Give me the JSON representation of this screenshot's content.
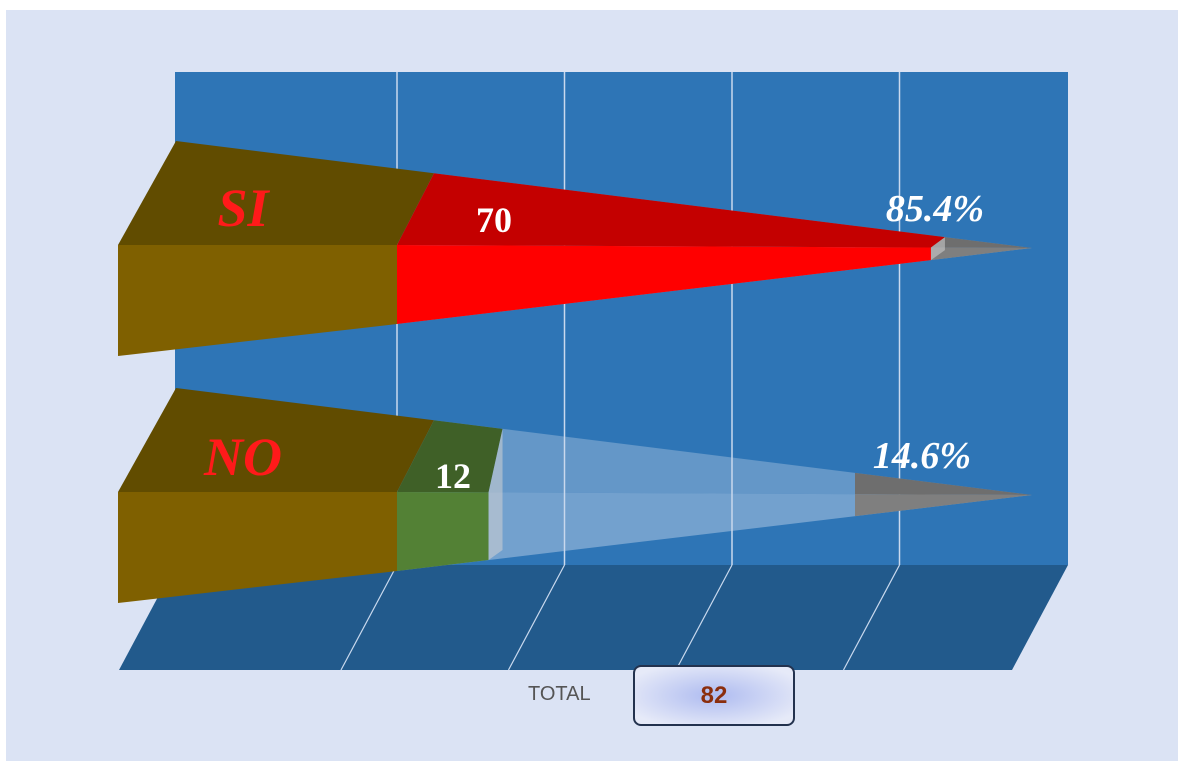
{
  "chart_data": {
    "type": "bar",
    "orientation": "horizontal",
    "style": "3d-cone",
    "categories": [
      "SI",
      "NO"
    ],
    "values": [
      70,
      12
    ],
    "percent_labels": [
      "85.4%",
      "14.6%"
    ],
    "xlim": [
      0,
      82
    ],
    "grid": true,
    "colors": {
      "category_block": "#7f6000",
      "bar_si": "#ff0000",
      "bar_no": "#538135",
      "back_wall": "#2e75b6",
      "floor": "#225a8c",
      "background": "#dbe3f4"
    }
  },
  "total": {
    "label": "TOTAL",
    "value": "82"
  }
}
